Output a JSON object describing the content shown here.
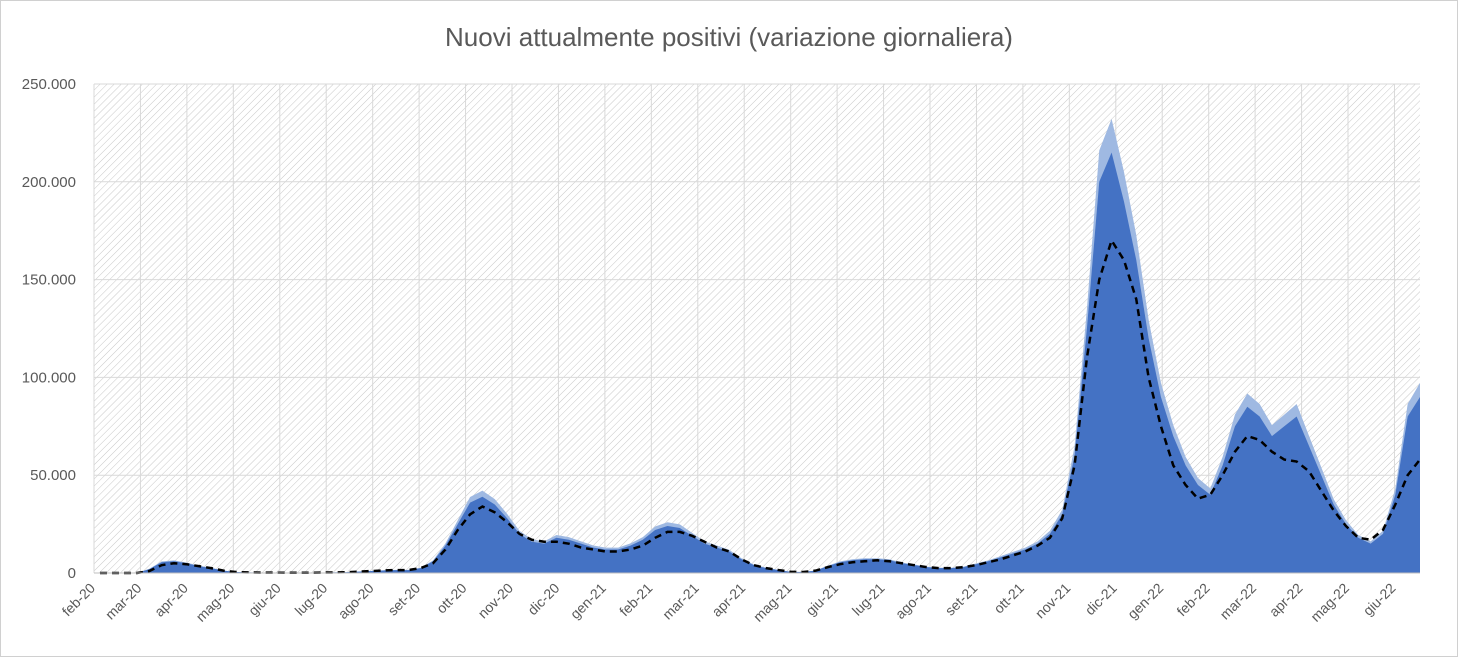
{
  "chart_data": {
    "type": "area",
    "title": "Nuovi attualmente positivi (variazione giornaliera)",
    "ylim": [
      0,
      250000
    ],
    "yticks": [
      0,
      50000,
      100000,
      150000,
      200000,
      250000
    ],
    "ytick_labels": [
      "0",
      "50.000",
      "100.000",
      "150.000",
      "200.000",
      "250.000"
    ],
    "xticks": [
      "feb-20",
      "mar-20",
      "apr-20",
      "mag-20",
      "giu-20",
      "lug-20",
      "ago-20",
      "set-20",
      "ott-20",
      "nov-20",
      "dic-20",
      "gen-21",
      "feb-21",
      "mar-21",
      "apr-21",
      "mag-21",
      "giu-21",
      "lug-21",
      "ago-21",
      "set-21",
      "ott-21",
      "nov-21",
      "dic-21",
      "gen-22",
      "feb-22",
      "mar-22",
      "apr-22",
      "mag-22",
      "giu-22"
    ],
    "grid": true,
    "colors": {
      "daily_area": "#4472c4",
      "daily_peaks": "#9fb9e2",
      "moving_average": "#000000",
      "grid": "#d9d9d9"
    },
    "series": [
      {
        "style": "area",
        "values": [
          0,
          0,
          0,
          0,
          2000,
          5500,
          6000,
          5000,
          3500,
          2500,
          1200,
          500,
          300,
          200,
          200,
          100,
          100,
          100,
          200,
          300,
          400,
          700,
          1000,
          1300,
          1500,
          1500,
          2500,
          6000,
          14000,
          25000,
          36000,
          39000,
          35000,
          28000,
          20000,
          16000,
          15000,
          18000,
          17000,
          15000,
          13000,
          12000,
          12000,
          14000,
          17000,
          22000,
          24000,
          23000,
          19000,
          15000,
          13000,
          11000,
          7000,
          4000,
          2500,
          1500,
          600,
          500,
          1200,
          3500,
          5500,
          6500,
          7000,
          7000,
          6500,
          5000,
          4000,
          3000,
          2500,
          2500,
          3000,
          4500,
          6000,
          8000,
          10000,
          12000,
          15000,
          20000,
          30000,
          60000,
          125000,
          200000,
          215000,
          190000,
          160000,
          120000,
          90000,
          70000,
          55000,
          45000,
          40000,
          55000,
          75000,
          85000,
          80000,
          70000,
          75000,
          80000,
          65000,
          50000,
          35000,
          25000,
          18000,
          15000,
          20000,
          40000,
          80000,
          90000
        ]
      },
      {
        "style": "dashed-line",
        "values": [
          0,
          0,
          0,
          0,
          1000,
          4000,
          5000,
          4500,
          3500,
          2500,
          1200,
          500,
          300,
          200,
          200,
          100,
          100,
          100,
          200,
          300,
          400,
          700,
          1000,
          1300,
          1500,
          1500,
          2500,
          5000,
          12000,
          22000,
          30000,
          34000,
          31000,
          26000,
          20000,
          17000,
          16000,
          16000,
          15000,
          13000,
          12000,
          11000,
          11000,
          12000,
          14000,
          18000,
          21000,
          21000,
          19000,
          16000,
          13000,
          11000,
          7000,
          4000,
          2500,
          1500,
          600,
          500,
          1200,
          3000,
          4500,
          5500,
          6000,
          6500,
          6000,
          5000,
          4000,
          3000,
          2500,
          2500,
          3000,
          4000,
          5500,
          7000,
          9000,
          11000,
          14000,
          18000,
          28000,
          55000,
          110000,
          150000,
          170000,
          160000,
          140000,
          100000,
          75000,
          55000,
          45000,
          38000,
          40000,
          50000,
          62000,
          70000,
          68000,
          62000,
          58000,
          57000,
          52000,
          42000,
          32000,
          24000,
          18000,
          17000,
          22000,
          35000,
          50000,
          58000
        ]
      }
    ]
  }
}
